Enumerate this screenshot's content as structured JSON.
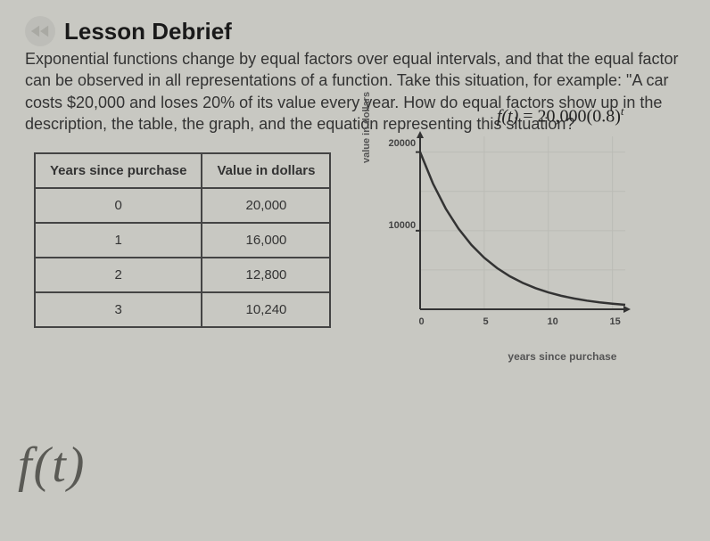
{
  "header": {
    "title": "Lesson Debrief"
  },
  "paragraph": "Exponential functions change by equal factors over equal intervals, and that the equal factor can be observed in all representations of a function. Take this situation, for example: \"A car costs $20,000 and loses 20% of its value every year. How do equal factors show up in the description, the table, the graph, and the equation representing this situation?",
  "table": {
    "columns": [
      "Years since purchase",
      "Value in dollars"
    ],
    "rows": [
      [
        "0",
        "20,000"
      ],
      [
        "1",
        "16,000"
      ],
      [
        "2",
        "12,800"
      ],
      [
        "3",
        "10,240"
      ]
    ]
  },
  "chart": {
    "type": "line",
    "equation_lhs": "f(t)",
    "equation_rhs": "= 20,000(0.8)",
    "equation_exp": "t",
    "xlabel": "years since purchase",
    "ylabel": "value in dollars",
    "xlim": [
      0,
      16
    ],
    "ylim": [
      0,
      22000
    ],
    "xtick_step": 5,
    "ytick_20000": "20000",
    "ytick_10000": "10000",
    "xtick_0": "0",
    "xtick_5": "5",
    "xtick_10": "10",
    "xtick_15": "15",
    "curve_color": "#333333",
    "axis_color": "#333333",
    "grid_color": "#bbbcb6",
    "background_color": "#c8c8c2",
    "curve_points": [
      [
        0,
        20000
      ],
      [
        1,
        16000
      ],
      [
        2,
        12800
      ],
      [
        3,
        10240
      ],
      [
        4,
        8192
      ],
      [
        5,
        6554
      ],
      [
        6,
        5243
      ],
      [
        7,
        4194
      ],
      [
        8,
        3355
      ],
      [
        9,
        2684
      ],
      [
        10,
        2147
      ],
      [
        11,
        1718
      ],
      [
        12,
        1374
      ],
      [
        13,
        1099
      ],
      [
        14,
        880
      ],
      [
        15,
        704
      ],
      [
        16,
        563
      ]
    ]
  },
  "handwriting": "f(t)"
}
